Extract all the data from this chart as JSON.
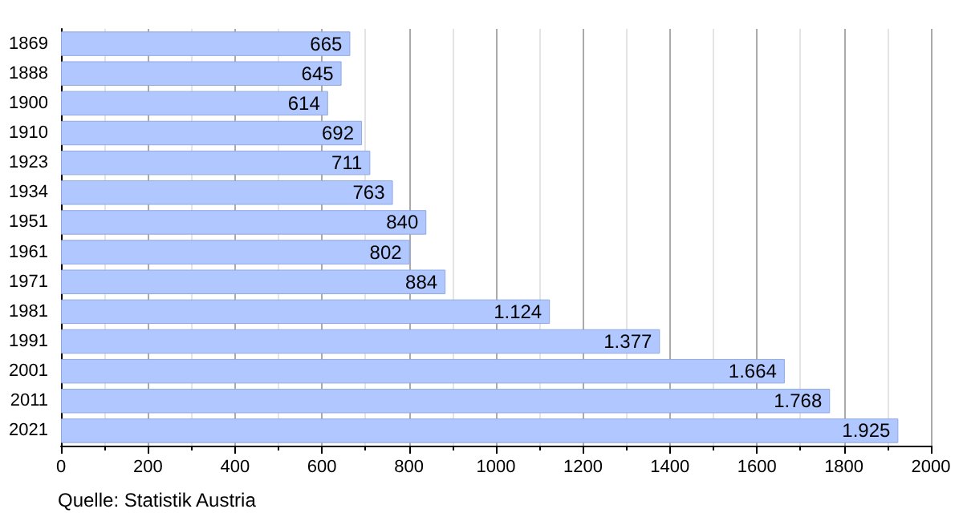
{
  "chart_data": {
    "type": "bar",
    "orientation": "horizontal",
    "categories": [
      "1869",
      "1888",
      "1900",
      "1910",
      "1923",
      "1934",
      "1951",
      "1961",
      "1971",
      "1981",
      "1991",
      "2001",
      "2011",
      "2021"
    ],
    "values": [
      665,
      645,
      614,
      692,
      711,
      763,
      840,
      802,
      884,
      1124,
      1377,
      1664,
      1768,
      1925
    ],
    "value_labels": [
      "665",
      "645",
      "614",
      "692",
      "711",
      "763",
      "840",
      "802",
      "884",
      "1.124",
      "1.377",
      "1.664",
      "1.768",
      "1.925"
    ],
    "color": "#b0c8ff",
    "xlim": [
      0,
      2000
    ],
    "xticks": [
      0,
      200,
      400,
      600,
      800,
      1000,
      1200,
      1400,
      1600,
      1800,
      2000
    ],
    "grid": "x",
    "annotations": [
      "Quelle: Statistik Austria"
    ]
  }
}
